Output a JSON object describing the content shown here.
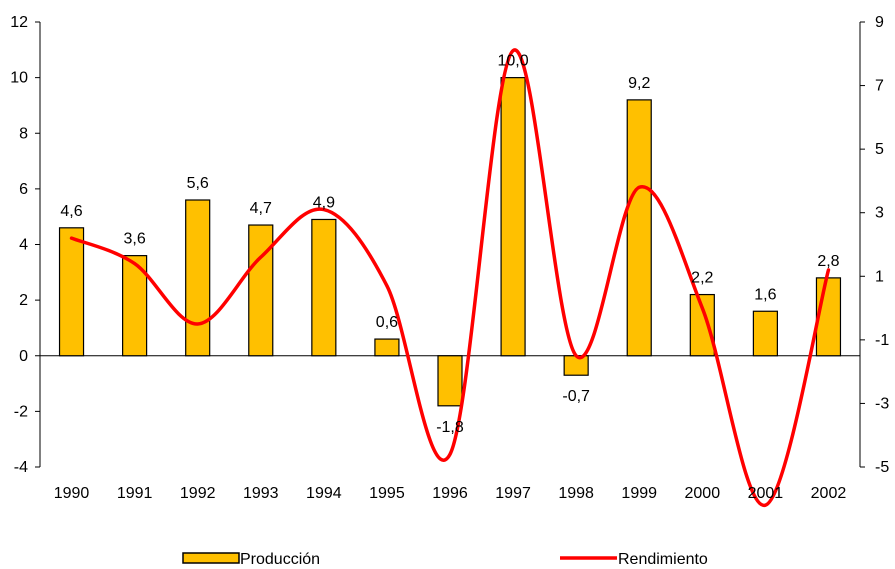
{
  "chart_data": {
    "type": "bar",
    "categories": [
      "1990",
      "1991",
      "1992",
      "1993",
      "1994",
      "1995",
      "1996",
      "1997",
      "1998",
      "1999",
      "2000",
      "2001",
      "2002"
    ],
    "series": [
      {
        "name": "Producción",
        "type": "bar",
        "axis": "left",
        "values": [
          4.6,
          3.6,
          5.6,
          4.7,
          4.9,
          0.6,
          -1.8,
          10.0,
          -0.7,
          9.2,
          2.2,
          1.6,
          2.8
        ],
        "labels": [
          "4,6",
          "3,6",
          "5,6",
          "4,7",
          "4,9",
          "0,6",
          "-1,8",
          "10,0",
          "-0,7",
          "9,2",
          "2,2",
          "1,6",
          "2,8"
        ],
        "color": "#FFC000"
      },
      {
        "name": "Rendimiento",
        "type": "line",
        "axis": "right",
        "smooth": true,
        "values": [
          2.2,
          1.4,
          -0.5,
          1.6,
          3.1,
          0.7,
          -4.6,
          8.1,
          -1.5,
          3.8,
          0.0,
          -6.2,
          1.2
        ],
        "color": "#FF0000"
      }
    ],
    "y_left": {
      "ylim": [
        -4,
        12
      ],
      "ticks": [
        "-4",
        "-2",
        "0",
        "2",
        "4",
        "6",
        "8",
        "10",
        "12"
      ],
      "tick_values": [
        -4,
        -2,
        0,
        2,
        4,
        6,
        8,
        10,
        12
      ]
    },
    "y_right": {
      "ylim": [
        -5,
        9
      ],
      "ticks": [
        "-5",
        "-3",
        "-1",
        "1",
        "3",
        "5",
        "7",
        "9"
      ],
      "tick_values": [
        -5,
        -3,
        -1,
        1,
        3,
        5,
        7,
        9
      ]
    },
    "grid": false,
    "legend_position": "bottom"
  }
}
